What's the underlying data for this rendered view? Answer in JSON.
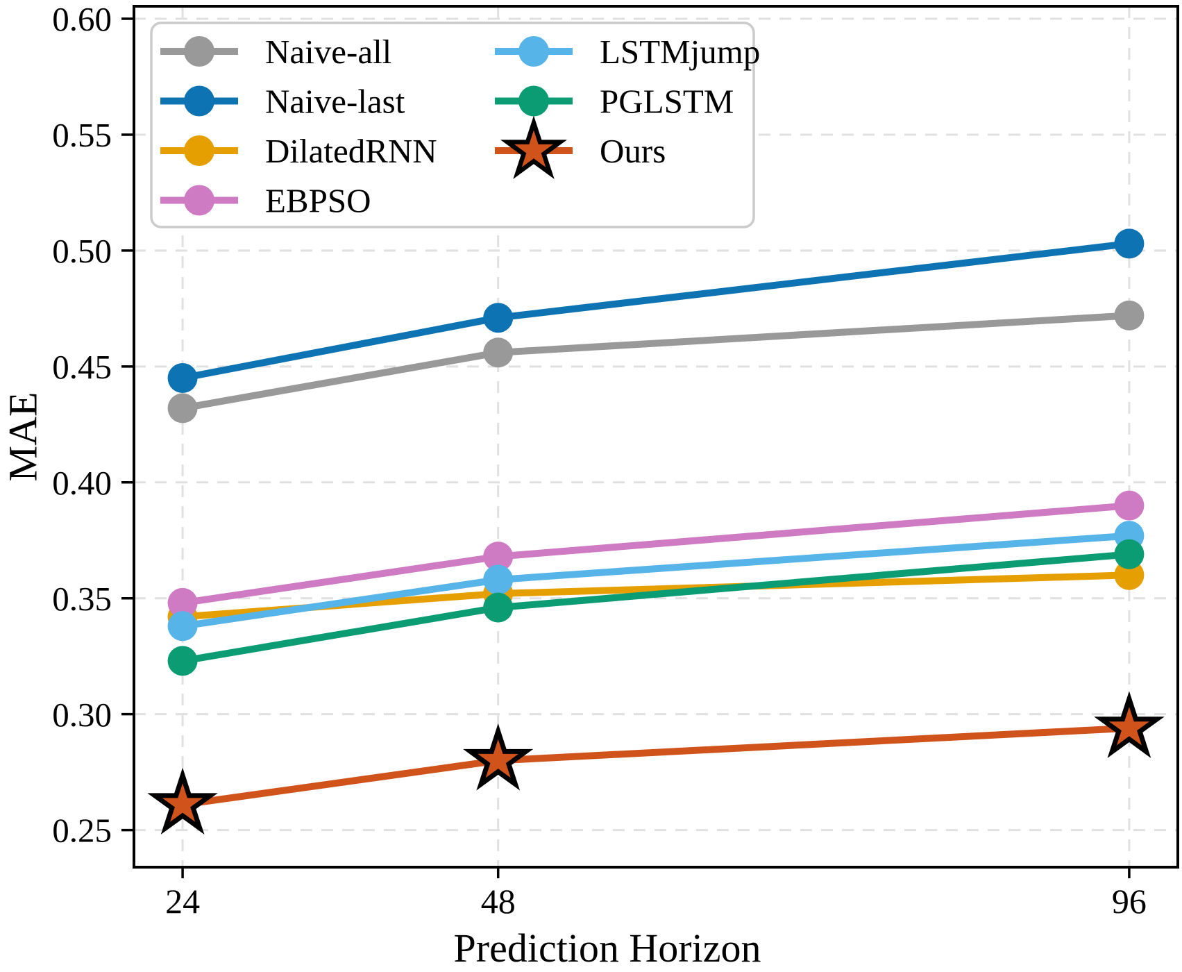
{
  "figure": {
    "background": "#ffffff",
    "xlabel": "Prediction Horizon",
    "ylabel": "MAE"
  },
  "chart_data": {
    "type": "line",
    "title": "",
    "xlabel": "Prediction Horizon",
    "ylabel": "MAE",
    "x": [
      24,
      48,
      96
    ],
    "x_tick_labels": [
      "24",
      "48",
      "96"
    ],
    "y_ticks": [
      0.25,
      0.3,
      0.35,
      0.4,
      0.45,
      0.5,
      0.55,
      0.6
    ],
    "y_tick_labels": [
      "0.25",
      "0.30",
      "0.35",
      "0.40",
      "0.45",
      "0.50",
      "0.55",
      "0.60"
    ],
    "xlim": [
      20.3,
      99.7
    ],
    "ylim": [
      0.234,
      0.6054
    ],
    "grid": true,
    "grid_style": "dashed",
    "grid_color": "#e0e0e0",
    "legend_position": "upper-left",
    "legend_columns": 2,
    "legend_border_color": "#cbcbcb",
    "series": [
      {
        "name": "Naive-all",
        "color": "#999999",
        "marker": "circle",
        "values": [
          0.432,
          0.456,
          0.472
        ]
      },
      {
        "name": "Naive-last",
        "color": "#0d73b2",
        "marker": "circle",
        "values": [
          0.445,
          0.471,
          0.503
        ]
      },
      {
        "name": "DilatedRNN",
        "color": "#e69f00",
        "marker": "circle",
        "values": [
          0.342,
          0.352,
          0.36
        ]
      },
      {
        "name": "EBPSO",
        "color": "#ce7bc4",
        "marker": "circle",
        "values": [
          0.348,
          0.368,
          0.39
        ]
      },
      {
        "name": "LSTMjump",
        "color": "#56b4e9",
        "marker": "circle",
        "values": [
          0.338,
          0.358,
          0.377
        ]
      },
      {
        "name": "PGLSTM",
        "color": "#0b9c73",
        "marker": "circle",
        "values": [
          0.323,
          0.346,
          0.369
        ]
      },
      {
        "name": "Ours",
        "color": "#d0531b",
        "marker": "star",
        "marker_edge": "#000000",
        "values": [
          0.261,
          0.28,
          0.294
        ]
      }
    ]
  }
}
